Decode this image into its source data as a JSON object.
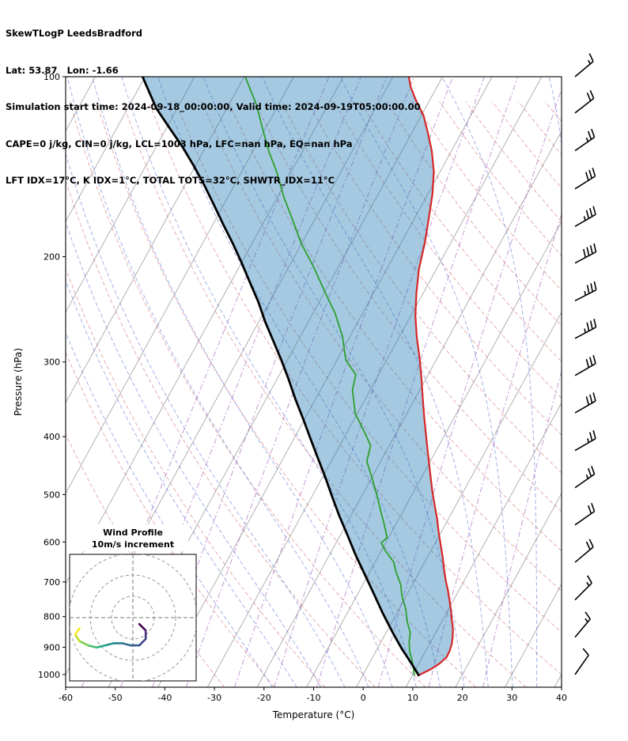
{
  "header": {
    "line1": "SkewTLogP LeedsBradford",
    "line2": "Lat: 53.87   Lon: -1.66",
    "line3": "Simulation start time: 2024-09-18_00:00:00, Valid time: 2024-09-19T05:00:00.00",
    "line4": "CAPE=0 j/kg, CIN=0 j/kg, LCL=1003 hPa, LFC=nan hPa, EQ=nan hPa",
    "line5": "LFT IDX=17°C, K IDX=1°C, TOTAL TOTS=32°C, SHWTR_IDX=11°C"
  },
  "chart_data": {
    "type": "skewt-logp",
    "title": "SkewTLogP LeedsBradford",
    "xlabel": "Temperature (°C)",
    "ylabel": "Pressure (hPa)",
    "x_range": [
      -60,
      40
    ],
    "x_ticks": [
      -60,
      -50,
      -40,
      -30,
      -20,
      -10,
      0,
      10,
      20,
      30,
      40
    ],
    "y_ticks": [
      100,
      200,
      300,
      400,
      500,
      600,
      700,
      800,
      900,
      1000
    ],
    "p_axis": [
      100,
      1050
    ],
    "skew_c_per_decade": 66,
    "grid": true,
    "colors": {
      "isotherm": "#a8a8a8",
      "dry_adiabat": "rgba(200,70,70,0.45)",
      "moist_adiabat": "rgba(70,100,210,0.5)",
      "mixing_ratio": "rgba(150,70,180,0.55)",
      "temperature": "#d62728",
      "dewpoint": "#2ca02c",
      "parcel": "#000000",
      "shading": "rgba(31,119,180,0.4)"
    },
    "isotherms_c": [
      -120,
      -110,
      -100,
      -90,
      -80,
      -70,
      -60,
      -50,
      -40,
      -30,
      -20,
      -10,
      0,
      10,
      20,
      30,
      40
    ],
    "dry_adiabats_theta_c": [
      -30,
      -20,
      -10,
      0,
      10,
      20,
      30,
      40,
      50,
      60,
      70,
      80,
      90,
      100,
      110,
      120,
      130,
      140,
      150,
      160,
      170,
      180,
      190,
      200,
      210
    ],
    "moist_adiabats_start_c": [
      -20,
      -15,
      -10,
      -5,
      0,
      5,
      10,
      15,
      20,
      25,
      30,
      35,
      40,
      45
    ],
    "mixing_ratios_g_kg": [
      0.02,
      0.05,
      0.1,
      0.2,
      0.5,
      1,
      2,
      5,
      10,
      20
    ],
    "temperature_profile": [
      [
        1005,
        11.1
      ],
      [
        980,
        13.0
      ],
      [
        958,
        14.2
      ],
      [
        935,
        14.9
      ],
      [
        912,
        14.8
      ],
      [
        890,
        14.5
      ],
      [
        865,
        13.9
      ],
      [
        837,
        13.0
      ],
      [
        810,
        11.8
      ],
      [
        785,
        10.8
      ],
      [
        755,
        9.4
      ],
      [
        725,
        7.9
      ],
      [
        695,
        6.2
      ],
      [
        665,
        4.6
      ],
      [
        635,
        3.0
      ],
      [
        605,
        1.2
      ],
      [
        578,
        -0.5
      ],
      [
        550,
        -2.2
      ],
      [
        522,
        -4.2
      ],
      [
        495,
        -6.2
      ],
      [
        470,
        -8.0
      ],
      [
        445,
        -9.9
      ],
      [
        420,
        -11.9
      ],
      [
        395,
        -14.0
      ],
      [
        370,
        -16.2
      ],
      [
        345,
        -18.5
      ],
      [
        320,
        -20.9
      ],
      [
        296,
        -23.5
      ],
      [
        273,
        -26.4
      ],
      [
        251,
        -29.1
      ],
      [
        230,
        -31.4
      ],
      [
        210,
        -33.5
      ],
      [
        190,
        -35.2
      ],
      [
        172,
        -37.2
      ],
      [
        157,
        -39.1
      ],
      [
        144,
        -41.3
      ],
      [
        133,
        -44.0
      ],
      [
        124,
        -46.8
      ],
      [
        116,
        -49.6
      ],
      [
        109,
        -53.0
      ],
      [
        104,
        -55.3
      ],
      [
        100,
        -56.8
      ]
    ],
    "dewpoint_profile": [
      [
        1005,
        10.5
      ],
      [
        975,
        9.4
      ],
      [
        945,
        8.2
      ],
      [
        915,
        6.8
      ],
      [
        880,
        5.6
      ],
      [
        852,
        4.9
      ],
      [
        815,
        3.0
      ],
      [
        776,
        1.3
      ],
      [
        740,
        -0.8
      ],
      [
        708,
        -2.3
      ],
      [
        675,
        -4.6
      ],
      [
        648,
        -6.3
      ],
      [
        620,
        -9.3
      ],
      [
        602,
        -10.9
      ],
      [
        590,
        -10.3
      ],
      [
        560,
        -12.4
      ],
      [
        528,
        -14.9
      ],
      [
        498,
        -17.3
      ],
      [
        467,
        -20.1
      ],
      [
        440,
        -22.8
      ],
      [
        414,
        -23.8
      ],
      [
        396,
        -26.1
      ],
      [
        366,
        -30.4
      ],
      [
        334,
        -33.6
      ],
      [
        315,
        -34.6
      ],
      [
        298,
        -38.2
      ],
      [
        272,
        -41.5
      ],
      [
        249,
        -45.5
      ],
      [
        228,
        -50.2
      ],
      [
        208,
        -55.0
      ],
      [
        190,
        -60.1
      ],
      [
        174,
        -64.3
      ],
      [
        159,
        -68.7
      ],
      [
        145,
        -72.7
      ],
      [
        133,
        -76.9
      ],
      [
        122,
        -80.6
      ],
      [
        111,
        -84.6
      ],
      [
        100,
        -89.8
      ]
    ],
    "parcel_profile": [
      [
        1005,
        11.4
      ],
      [
        958,
        8.5
      ],
      [
        905,
        4.9
      ],
      [
        852,
        1.4
      ],
      [
        790,
        -2.8
      ],
      [
        731,
        -6.9
      ],
      [
        678,
        -10.9
      ],
      [
        630,
        -14.8
      ],
      [
        584,
        -18.6
      ],
      [
        542,
        -22.4
      ],
      [
        503,
        -26.0
      ],
      [
        467,
        -29.5
      ],
      [
        433,
        -33.2
      ],
      [
        402,
        -36.8
      ],
      [
        373,
        -40.4
      ],
      [
        346,
        -44.1
      ],
      [
        321,
        -47.6
      ],
      [
        298,
        -51.2
      ],
      [
        277,
        -54.9
      ],
      [
        257,
        -58.7
      ],
      [
        238,
        -62.3
      ],
      [
        221,
        -66.1
      ],
      [
        205,
        -69.9
      ],
      [
        190,
        -73.9
      ],
      [
        177,
        -77.8
      ],
      [
        164,
        -81.9
      ],
      [
        152,
        -86.0
      ],
      [
        141,
        -90.3
      ],
      [
        131,
        -94.7
      ],
      [
        122,
        -99.3
      ],
      [
        113,
        -104.2
      ],
      [
        106,
        -107.5
      ],
      [
        100,
        -110.5
      ]
    ],
    "wind_barbs_units": "kt",
    "wind_barbs": [
      {
        "p": 1000,
        "dir": 35,
        "spd": 10
      },
      {
        "p": 866,
        "dir": 40,
        "spd": 15
      },
      {
        "p": 750,
        "dir": 45,
        "spd": 15
      },
      {
        "p": 649,
        "dir": 50,
        "spd": 20
      },
      {
        "p": 562,
        "dir": 55,
        "spd": 20
      },
      {
        "p": 487,
        "dir": 55,
        "spd": 25
      },
      {
        "p": 422,
        "dir": 60,
        "spd": 25
      },
      {
        "p": 365,
        "dir": 60,
        "spd": 30
      },
      {
        "p": 316,
        "dir": 60,
        "spd": 30
      },
      {
        "p": 274,
        "dir": 62,
        "spd": 35
      },
      {
        "p": 237,
        "dir": 63,
        "spd": 35
      },
      {
        "p": 205,
        "dir": 62,
        "spd": 40
      },
      {
        "p": 178,
        "dir": 60,
        "spd": 35
      },
      {
        "p": 154,
        "dir": 58,
        "spd": 30
      },
      {
        "p": 133,
        "dir": 55,
        "spd": 25
      },
      {
        "p": 115,
        "dir": 52,
        "spd": 20
      },
      {
        "p": 100,
        "dir": 50,
        "spd": 15
      }
    ],
    "hodograph": {
      "title": "Wind Profile",
      "subtitle": "10m/s increment",
      "ring_interval_ms": 10,
      "rings": [
        10,
        20,
        30
      ],
      "box": {
        "x": 88,
        "y": 701,
        "size": 160
      },
      "trace": [
        {
          "u": 3,
          "v": -3,
          "c": "#440154"
        },
        {
          "u": 6,
          "v": -6,
          "c": "#46327e"
        },
        {
          "u": 6,
          "v": -10,
          "c": "#3f4a8a"
        },
        {
          "u": 3,
          "v": -13,
          "c": "#365c8d"
        },
        {
          "u": -1,
          "v": -13,
          "c": "#2e6d8e"
        },
        {
          "u": -5,
          "v": -12,
          "c": "#277f8e"
        },
        {
          "u": -9,
          "v": -12,
          "c": "#21918c"
        },
        {
          "u": -13,
          "v": -13,
          "c": "#22a884"
        },
        {
          "u": -17,
          "v": -14,
          "c": "#44bf70"
        },
        {
          "u": -21,
          "v": -13,
          "c": "#7ad151"
        },
        {
          "u": -25,
          "v": -11,
          "c": "#bddf26"
        },
        {
          "u": -27,
          "v": -8,
          "c": "#fde725"
        },
        {
          "u": -25,
          "v": -5,
          "c": "#fde725"
        }
      ]
    }
  }
}
